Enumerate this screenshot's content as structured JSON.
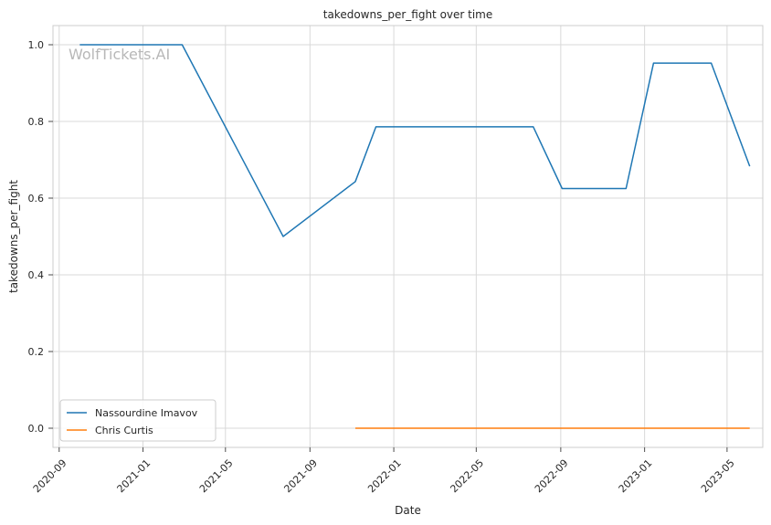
{
  "chart_data": {
    "type": "line",
    "title": "takedowns_per_fight over time",
    "xlabel": "Date",
    "ylabel": "takedowns_per_fight",
    "watermark": "WolfTickets.AI",
    "xlim": [
      "2020-08-23",
      "2023-06-22"
    ],
    "ylim": [
      -0.05,
      1.05
    ],
    "x_ticks": [
      "2020-09",
      "2021-01",
      "2021-05",
      "2021-09",
      "2022-01",
      "2022-05",
      "2022-09",
      "2023-01",
      "2023-05"
    ],
    "y_ticks": [
      0.0,
      0.2,
      0.4,
      0.6,
      0.8,
      1.0
    ],
    "y_tick_labels": [
      "0.0",
      "0.2",
      "0.4",
      "0.6",
      "0.8",
      "1.0"
    ],
    "grid": true,
    "legend_position": "lower-left",
    "series": [
      {
        "name": "Nassourdine Imavov",
        "color": "#1f77b4",
        "x": [
          "2020-10-01",
          "2021-02-27",
          "2021-07-24",
          "2021-11-06",
          "2021-12-06",
          "2022-07-23",
          "2022-09-03",
          "2022-12-05",
          "2023-01-14",
          "2023-04-08",
          "2023-06-03"
        ],
        "y": [
          1.0,
          1.0,
          0.5,
          0.643,
          0.786,
          0.786,
          0.625,
          0.625,
          0.952,
          0.952,
          0.683
        ]
      },
      {
        "name": "Chris Curtis",
        "color": "#ff7f0e",
        "x": [
          "2021-11-06",
          "2023-06-03"
        ],
        "y": [
          0.0,
          0.0
        ]
      }
    ]
  }
}
